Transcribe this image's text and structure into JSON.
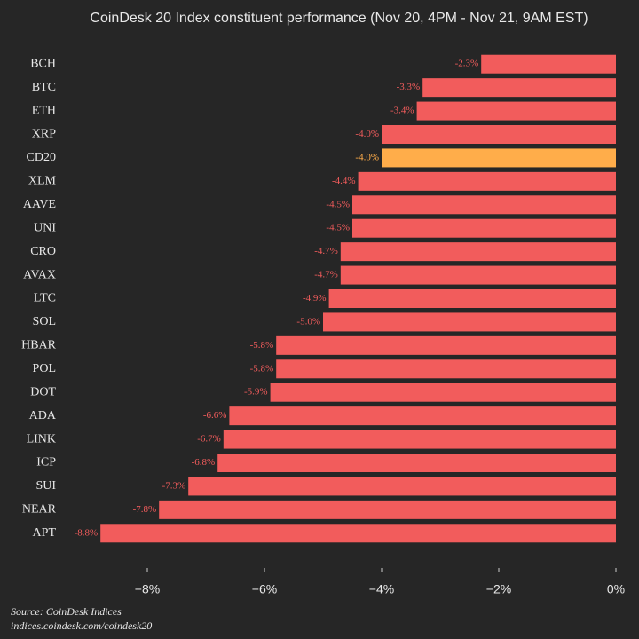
{
  "chart_data": {
    "type": "hbar",
    "title": "CoinDesk 20 Index constituent performance (Nov 20, 4PM - Nov 21, 9AM EST)",
    "categories": [
      "BCH",
      "BTC",
      "ETH",
      "XRP",
      "CD20",
      "XLM",
      "AAVE",
      "UNI",
      "CRO",
      "AVAX",
      "LTC",
      "SOL",
      "HBAR",
      "POL",
      "DOT",
      "ADA",
      "LINK",
      "ICP",
      "SUI",
      "NEAR",
      "APT"
    ],
    "values": [
      -2.3,
      -3.3,
      -3.4,
      -4.0,
      -4.0,
      -4.4,
      -4.5,
      -4.5,
      -4.7,
      -4.7,
      -4.9,
      -5.0,
      -5.8,
      -5.8,
      -5.9,
      -6.6,
      -6.7,
      -6.8,
      -7.3,
      -7.8,
      -8.8
    ],
    "value_labels": [
      "-2.3%",
      "-3.3%",
      "-3.4%",
      "-4.0%",
      "-4.0%",
      "-4.4%",
      "-4.5%",
      "-4.5%",
      "-4.7%",
      "-4.7%",
      "-4.9%",
      "-5.0%",
      "-5.8%",
      "-5.8%",
      "-5.9%",
      "-6.6%",
      "-6.7%",
      "-6.8%",
      "-7.3%",
      "-7.8%",
      "-8.8%"
    ],
    "colors": [
      "#f25c5c",
      "#f25c5c",
      "#f25c5c",
      "#f25c5c",
      "#ffad4a",
      "#f25c5c",
      "#f25c5c",
      "#f25c5c",
      "#f25c5c",
      "#f25c5c",
      "#f25c5c",
      "#f25c5c",
      "#f25c5c",
      "#f25c5c",
      "#f25c5c",
      "#f25c5c",
      "#f25c5c",
      "#f25c5c",
      "#f25c5c",
      "#f25c5c",
      "#f25c5c"
    ],
    "xlim": [
      -9.4,
      0.1
    ],
    "xticks": [
      {
        "value": -8,
        "label": "−8%"
      },
      {
        "value": -6,
        "label": "−6%"
      },
      {
        "value": -4,
        "label": "−4%"
      },
      {
        "value": -2,
        "label": "−2%"
      },
      {
        "value": 0,
        "label": "0%"
      }
    ],
    "source": [
      "Source: CoinDesk Indices",
      "indices.coindesk.com/coindesk20"
    ]
  }
}
